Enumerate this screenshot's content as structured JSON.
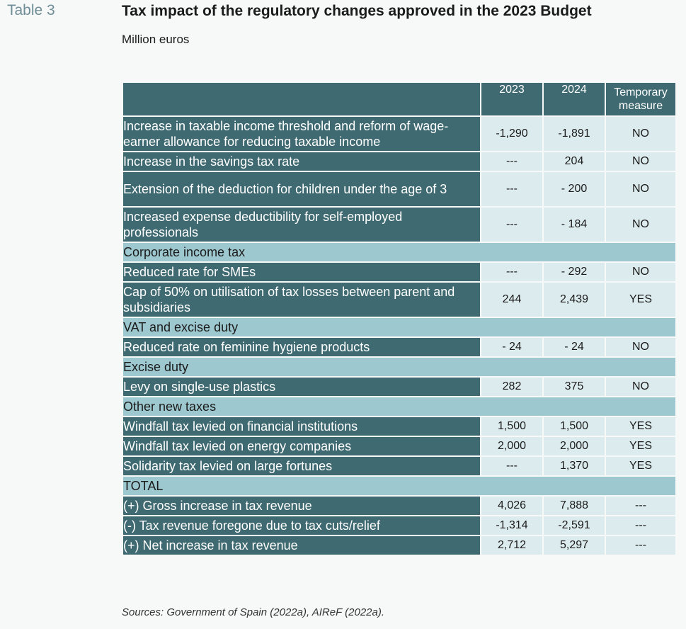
{
  "header": {
    "table_label": "Table 3",
    "title": "Tax impact of the regulatory changes approved in the 2023 Budget",
    "subtitle": "Million euros"
  },
  "table": {
    "columns": [
      "2023",
      "2024",
      "Temporary measure"
    ],
    "rows": [
      {
        "type": "row",
        "label": "Increase in taxable income threshold and reform of wage-earner allowance for reducing taxable income",
        "v2023": "-1,290",
        "v2024": "-1,891",
        "temp": "NO"
      },
      {
        "type": "row",
        "label": "Increase in the savings tax rate",
        "v2023": "---",
        "v2024": "204",
        "temp": "NO"
      },
      {
        "type": "row",
        "label": "Extension of the deduction for children under the age of 3",
        "v2023": "---",
        "v2024": "- 200",
        "temp": "NO"
      },
      {
        "type": "row",
        "label": "Increased expense deductibility for self-employed professionals",
        "v2023": "---",
        "v2024": "- 184",
        "temp": "NO"
      },
      {
        "type": "section",
        "label": "Corporate income tax"
      },
      {
        "type": "row",
        "label": "Reduced rate for SMEs",
        "v2023": "---",
        "v2024": "- 292",
        "temp": "NO"
      },
      {
        "type": "row",
        "label": "Cap of 50% on utilisation of tax losses between parent and subsidiaries",
        "v2023": "244",
        "v2024": "2,439",
        "temp": "YES"
      },
      {
        "type": "section",
        "label": "VAT and excise duty"
      },
      {
        "type": "row",
        "label": "Reduced rate on feminine hygiene products",
        "v2023": "- 24",
        "v2024": "- 24",
        "temp": "NO"
      },
      {
        "type": "section",
        "label": "Excise duty"
      },
      {
        "type": "row",
        "label": "Levy on single-use plastics",
        "v2023": "282",
        "v2024": "375",
        "temp": "NO"
      },
      {
        "type": "section",
        "label": "Other new taxes"
      },
      {
        "type": "row",
        "label": "Windfall tax levied on financial institutions",
        "v2023": "1,500",
        "v2024": "1,500",
        "temp": "YES"
      },
      {
        "type": "row",
        "label": "Windfall tax levied on energy companies",
        "v2023": "2,000",
        "v2024": "2,000",
        "temp": "YES"
      },
      {
        "type": "row",
        "label": "Solidarity tax levied on large fortunes",
        "v2023": "---",
        "v2024": "1,370",
        "temp": "YES"
      },
      {
        "type": "section",
        "label": "TOTAL"
      },
      {
        "type": "row",
        "label": "(+) Gross increase in tax revenue",
        "v2023": "4,026",
        "v2024": "7,888",
        "temp": "---"
      },
      {
        "type": "row",
        "label": "(-) Tax revenue foregone due to tax cuts/relief",
        "v2023": "-1,314",
        "v2024": "-2,591",
        "temp": "---"
      },
      {
        "type": "row",
        "label": "(+) Net increase in tax revenue",
        "v2023": "2,712",
        "v2024": "5,297",
        "temp": "---"
      }
    ]
  },
  "footer": {
    "source": "Sources: Government of Spain (2022a), AIReF (2022a)."
  }
}
